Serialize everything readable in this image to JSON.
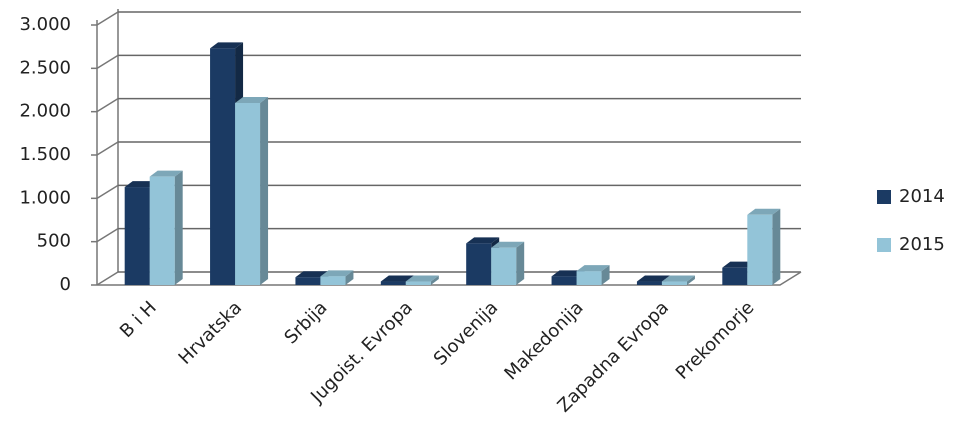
{
  "chart_data": {
    "type": "bar3d",
    "categories": [
      "B i H",
      "Hrvatska",
      "Srbija",
      "Jugoist. Evropa",
      "Slovenija",
      "Makedonija",
      "Zapadna Evropa",
      "Prekomorje"
    ],
    "series": [
      {
        "name": "2014",
        "color": "#1b3a63",
        "values": [
          1130,
          2730,
          90,
          40,
          480,
          100,
          40,
          200
        ]
      },
      {
        "name": "2015",
        "color": "#93c4d8",
        "values": [
          1250,
          2100,
          100,
          40,
          430,
          160,
          40,
          810
        ]
      }
    ],
    "ylim": [
      0,
      3000
    ],
    "yticks": [
      0,
      {
        "value": 500,
        "label": "500"
      },
      {
        "value": 1000,
        "label": "1.000"
      },
      {
        "value": 1500,
        "label": "1.500"
      },
      {
        "value": 2000,
        "label": "2.000"
      },
      {
        "value": 2500,
        "label": "2.500"
      },
      {
        "value": 3000,
        "label": "3.000"
      }
    ],
    "grid": true,
    "legend": "right"
  }
}
